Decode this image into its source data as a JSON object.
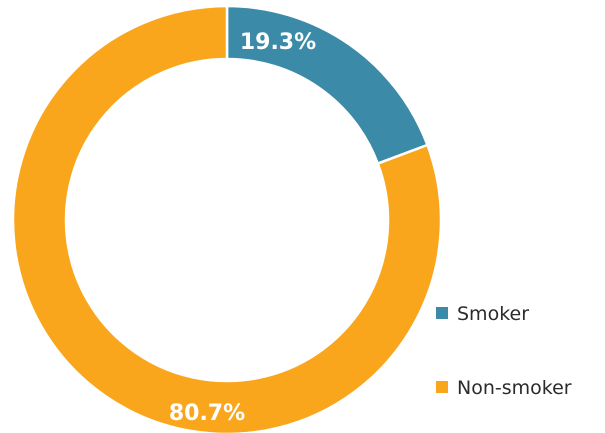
{
  "chart_data": {
    "type": "pie",
    "style": "donut",
    "categories": [
      "Smoker",
      "Non-smoker"
    ],
    "values": [
      19.3,
      80.7
    ],
    "data_labels": [
      "19.3%",
      "80.7%"
    ],
    "colors": [
      "#3b8aa8",
      "#f9a61c"
    ],
    "title": "",
    "legend": {
      "placement": "right-bottom",
      "entries": [
        "Smoker",
        "Non-smoker"
      ]
    },
    "start_angle": "12 o'clock",
    "direction": "clockwise"
  }
}
